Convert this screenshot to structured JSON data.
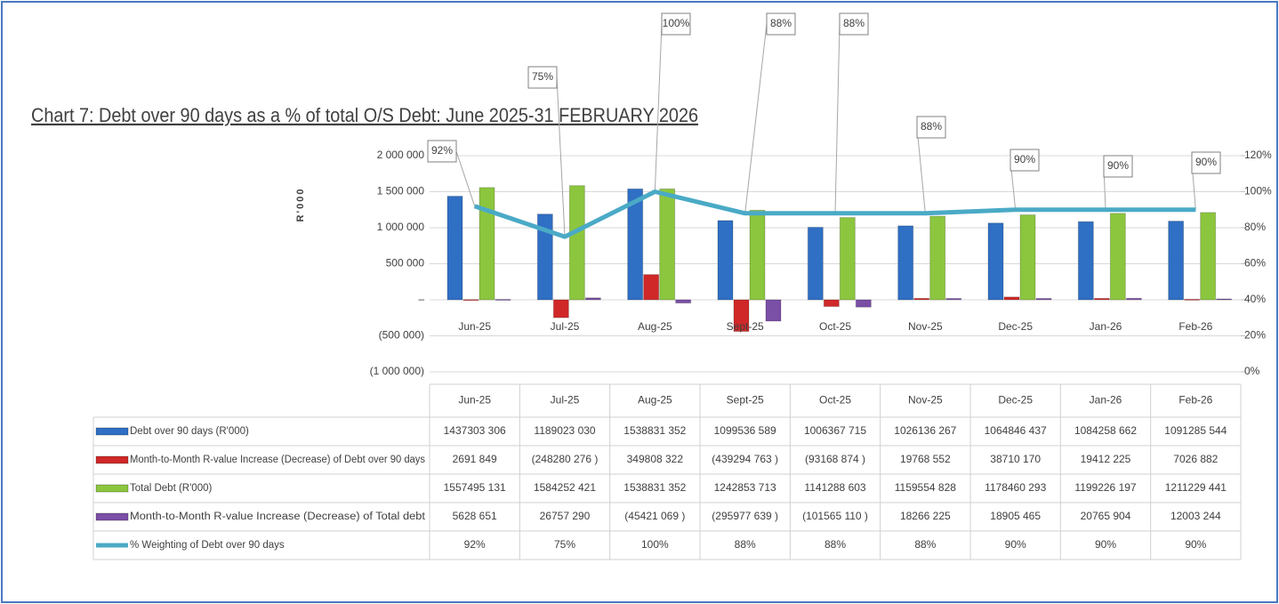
{
  "chart_data": {
    "type": "bar",
    "title": "Chart 7: Debt over 90 days as a % of total O/S Debt: June 2025-31 FEBRUARY 2026",
    "y_label": "R'000",
    "categories": [
      "Jun-25",
      "Jul-25",
      "Aug-25",
      "Sept-25",
      "Oct-25",
      "Nov-25",
      "Dec-25",
      "Jan-26",
      "Feb-26"
    ],
    "ylim": [
      -1000000,
      2000000
    ],
    "yticks": [
      {
        "value": -1000000,
        "label": "(1 000 000)"
      },
      {
        "value": -500000,
        "label": "(500 000)"
      },
      {
        "value": 0,
        "label": "–"
      },
      {
        "value": 500000,
        "label": "500 000"
      },
      {
        "value": 1000000,
        "label": "1 000 000"
      },
      {
        "value": 1500000,
        "label": "1 500 000"
      },
      {
        "value": 2000000,
        "label": "2 000 000"
      }
    ],
    "y2lim": [
      0,
      120
    ],
    "y2ticks": [
      {
        "value": 0,
        "label": "0%"
      },
      {
        "value": 20,
        "label": "20%"
      },
      {
        "value": 40,
        "label": "40%"
      },
      {
        "value": 60,
        "label": "60%"
      },
      {
        "value": 80,
        "label": "80%"
      },
      {
        "value": 100,
        "label": "100%"
      },
      {
        "value": 120,
        "label": "120%"
      }
    ],
    "grid": true,
    "series": [
      {
        "name": "Debt over 90 days (R'000)",
        "color": "#2f6fc4",
        "type": "bar",
        "values": [
          1437303.306,
          1189023.03,
          1538831.352,
          1099536.589,
          1006367.715,
          1026136.267,
          1064846.437,
          1084258.662,
          1091285.544
        ],
        "value_labels": [
          "1437303 306",
          "1189023 030",
          "1538831 352",
          "1099536 589",
          "1006367 715",
          "1026136 267",
          "1064846 437",
          "1084258 662",
          "1091285 544"
        ]
      },
      {
        "name": "Month-to-Month R-value Increase (Decrease) of Debt over 90 days",
        "color": "#d02828",
        "type": "bar",
        "values": [
          2691.849,
          -248280.276,
          349808.322,
          -439294.763,
          -93168.874,
          19768.552,
          38710.17,
          19412.225,
          7026.882
        ],
        "value_labels": [
          "2691 849",
          "(248280 276 )",
          "349808 322",
          "(439294 763 )",
          "(93168 874 )",
          "19768 552",
          "38710 170",
          "19412 225",
          "7026 882"
        ]
      },
      {
        "name": "Total Debt (R'000)",
        "color": "#8cc63e",
        "type": "bar",
        "values": [
          1557495.131,
          1584252.421,
          1538831.352,
          1242853.713,
          1141288.603,
          1159554.828,
          1178460.293,
          1199226.197,
          1211229.441
        ],
        "value_labels": [
          "1557495 131",
          "1584252 421",
          "1538831 352",
          "1242853 713",
          "1141288 603",
          "1159554 828",
          "1178460 293",
          "1199226 197",
          "1211229 441"
        ]
      },
      {
        "name": "Month-to-Month R-value Increase (Decrease) of Total debt",
        "color": "#7a4fa6",
        "type": "bar",
        "values": [
          5628.651,
          26757.29,
          -45421.069,
          -295977.639,
          -101565.11,
          18266.225,
          18905.465,
          20765.904,
          12003.244
        ],
        "value_labels": [
          "5628 651",
          "26757 290",
          "(45421 069 )",
          "(295977 639 )",
          "(101565 110 )",
          "18266 225",
          "18905 465",
          "20765 904",
          "12003 244"
        ]
      },
      {
        "name": "% Weighting of Debt over 90 days",
        "color": "#4aaac6",
        "type": "line",
        "axis": "y2",
        "values": [
          92,
          75,
          100,
          88,
          88,
          88,
          90,
          90,
          90
        ],
        "value_labels": [
          "92%",
          "75%",
          "100%",
          "88%",
          "88%",
          "88%",
          "90%",
          "90%",
          "90%"
        ]
      }
    ]
  }
}
